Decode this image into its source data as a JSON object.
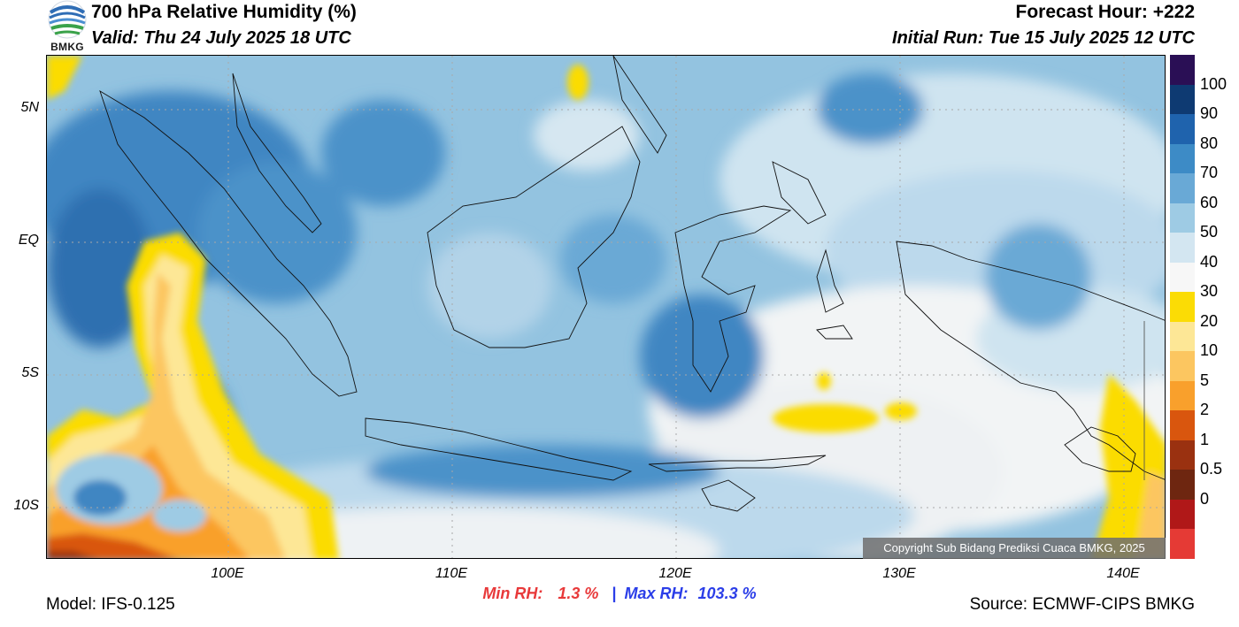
{
  "header": {
    "title": "700 hPa Relative Humidity (%)",
    "valid": "Valid: Thu 24 July 2025 18 UTC",
    "forecast_hour": "Forecast Hour: +222",
    "initial_run": "Initial Run: Tue 15 July 2025 12 UTC"
  },
  "logo": {
    "text": "BMKG",
    "icon": "bmkg-logo-icon"
  },
  "axes": {
    "lat_labels": [
      "5N",
      "EQ",
      "5S",
      "10S"
    ],
    "lon_labels": [
      "100E",
      "110E",
      "120E",
      "130E",
      "140E"
    ]
  },
  "colorbar": {
    "labels": [
      "100",
      "90",
      "80",
      "70",
      "60",
      "50",
      "40",
      "30",
      "20",
      "10",
      "5",
      "2",
      "1",
      "0.5",
      "0"
    ],
    "colors": [
      "#2a0f55",
      "#0e3a72",
      "#1f63ad",
      "#3d8bc6",
      "#69a9d6",
      "#9ecbe4",
      "#d3e6f1",
      "#f7f7f7",
      "#fbdc05",
      "#fde796",
      "#fcc660",
      "#f9a02c",
      "#d9560e",
      "#9a3110",
      "#6e2610",
      "#b01818",
      "#e53a35"
    ]
  },
  "stats": {
    "min_label": "Min RH:",
    "min_value": "1.3 %",
    "separator": "|",
    "max_label": "Max RH:",
    "max_value": "103.3 %"
  },
  "footer": {
    "model": "Model: IFS-0.125",
    "source": "Source: ECMWF-CIPS BMKG",
    "copyright": "Copyright Sub Bidang Prediksi Cuaca BMKG, 2025"
  }
}
